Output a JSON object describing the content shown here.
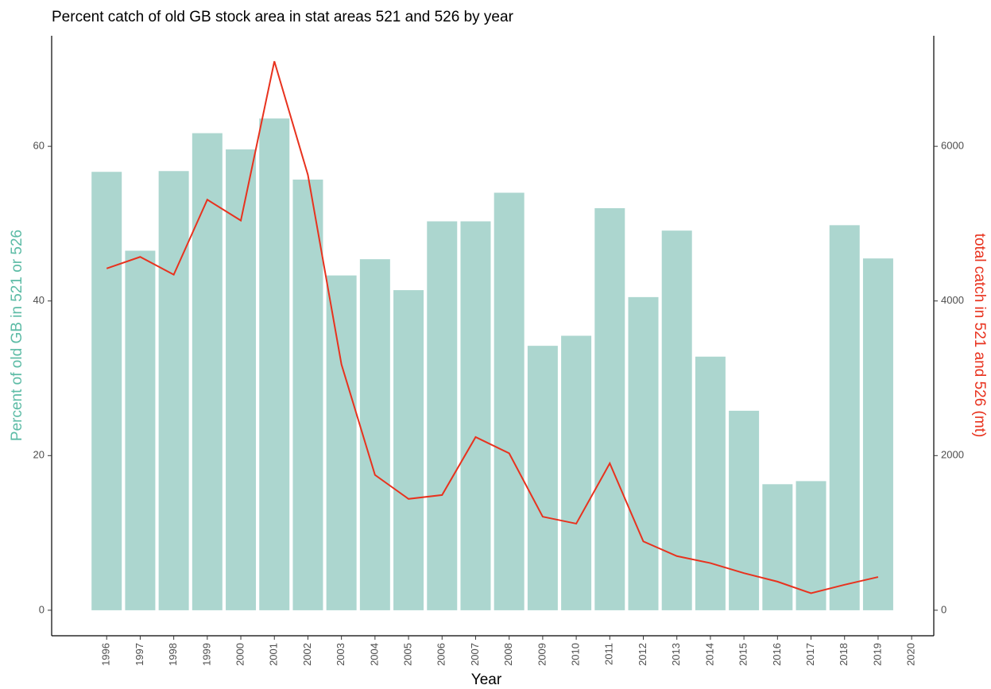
{
  "chart_data": {
    "type": "bar",
    "title": "Percent catch of old GB stock area in stat areas 521 and 526 by year",
    "x_label": "Year",
    "y_label": "Percent of old GB in 521 or 526",
    "y2_label": "total catch in 521 and 526 (mt)",
    "x": [
      1996,
      1997,
      1998,
      1999,
      2000,
      2001,
      2002,
      2003,
      2004,
      2005,
      2006,
      2007,
      2008,
      2009,
      2010,
      2011,
      2012,
      2013,
      2014,
      2015,
      2016,
      2017,
      2018,
      2019
    ],
    "series": [
      {
        "type": "bar",
        "color": "#acd6cf",
        "label_color": "#5cbba5",
        "values": [
          56.7,
          46.5,
          56.8,
          61.7,
          59.6,
          63.6,
          55.7,
          43.3,
          45.4,
          41.4,
          50.3,
          50.3,
          54.0,
          34.2,
          35.5,
          52.0,
          40.5,
          49.1,
          32.8,
          25.8,
          16.3,
          16.7,
          49.8,
          45.5
        ]
      },
      {
        "type": "line",
        "axis": "y2",
        "color": "#e8321e",
        "values": [
          4420,
          4570,
          4340,
          5310,
          5040,
          7100,
          5630,
          3180,
          1750,
          1440,
          1490,
          2240,
          2030,
          1210,
          1120,
          1900,
          890,
          700,
          610,
          480,
          370,
          220,
          330,
          430
        ]
      }
    ],
    "xlim": [
      1994.36,
      2020.66
    ],
    "xticks": [
      1996,
      1997,
      1998,
      1999,
      2000,
      2001,
      2002,
      2003,
      2004,
      2005,
      2006,
      2007,
      2008,
      2009,
      2010,
      2011,
      2012,
      2013,
      2014,
      2015,
      2016,
      2017,
      2018,
      2019,
      2020
    ],
    "ylim": [
      -3.3,
      74.3
    ],
    "yticks": [
      0,
      20,
      40,
      60
    ],
    "y2lim": [
      -330,
      7430
    ],
    "y2ticks": [
      0,
      2000,
      4000,
      6000
    ],
    "grid": false
  }
}
